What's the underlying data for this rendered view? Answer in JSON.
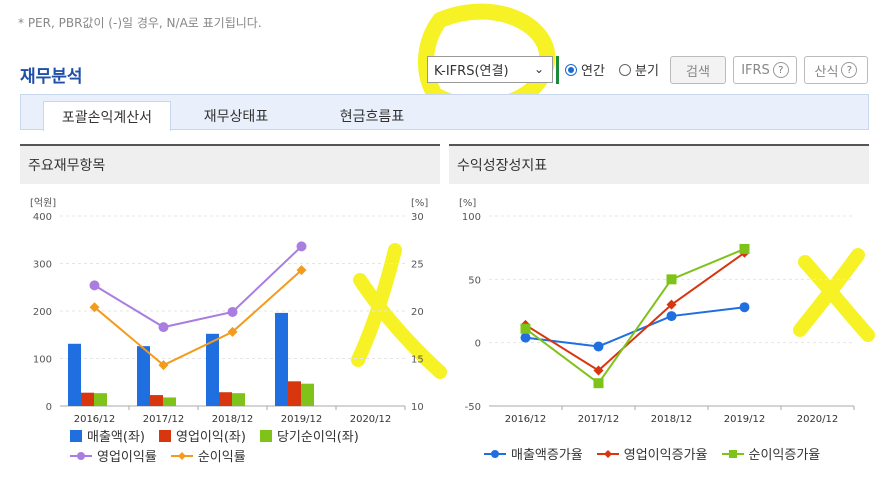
{
  "top_note": "* PER, PBR값이 (-)일 경우, N/A로 표기됩니다.",
  "section_title": "재무분석",
  "controls": {
    "select_value": "K-IFRS(연결)",
    "radio_annual": "연간",
    "radio_quarter": "분기",
    "search_button": "검색",
    "ifrs_button": "IFRS",
    "formula_button": "산식",
    "help_glyph": "?"
  },
  "tabs": [
    "포괄손익계산서",
    "재무상태표",
    "현금흐름표"
  ],
  "left_panel_title": "주요재무항목",
  "right_panel_title": "수익성장성지표",
  "colors": {
    "sales": "#1f6fe0",
    "op": "#d8360f",
    "net": "#7fc31a",
    "op_margin": "#a97ee0",
    "net_margin": "#f39b1c",
    "annot": "#fff200"
  },
  "chart_data": [
    {
      "type": "bar",
      "title": "주요재무항목",
      "left_unit": "[억원]",
      "right_unit": "[%]",
      "categories": [
        "2016/12",
        "2017/12",
        "2018/12",
        "2019/12",
        "2020/12"
      ],
      "y_ticks": [
        "400",
        "300",
        "200",
        "100",
        "0"
      ],
      "y2_ticks": [
        "30",
        "25",
        "20",
        "15",
        "10"
      ],
      "ylim": [
        0,
        400
      ],
      "y2lim": [
        10,
        30
      ],
      "series": [
        {
          "name": "매출액(좌)",
          "axis": "left",
          "kind": "bar",
          "values": [
            131,
            126,
            152,
            196,
            null
          ]
        },
        {
          "name": "영업이익(좌)",
          "axis": "left",
          "kind": "bar",
          "values": [
            28,
            23,
            29,
            52,
            null
          ]
        },
        {
          "name": "당기순이익(좌)",
          "axis": "left",
          "kind": "bar",
          "values": [
            27,
            18,
            27,
            47,
            null
          ]
        },
        {
          "name": "영업이익률",
          "axis": "right",
          "kind": "line",
          "values": [
            22.7,
            18.3,
            19.9,
            26.8,
            null
          ]
        },
        {
          "name": "순이익률",
          "axis": "right",
          "kind": "line",
          "values": [
            20.4,
            14.3,
            17.8,
            24.3,
            null
          ]
        }
      ]
    },
    {
      "type": "line",
      "title": "수익성장성지표",
      "unit": "[%]",
      "categories": [
        "2016/12",
        "2017/12",
        "2018/12",
        "2019/12",
        "2020/12"
      ],
      "y_ticks": [
        "100",
        "50",
        "0",
        "-50"
      ],
      "ylim": [
        -50,
        100
      ],
      "series": [
        {
          "name": "매출액증가율",
          "values": [
            4,
            -3,
            21,
            28,
            null
          ]
        },
        {
          "name": "영업이익증가율",
          "values": [
            14,
            -22,
            30,
            71,
            null
          ]
        },
        {
          "name": "순이익증가율",
          "values": [
            11,
            -32,
            50,
            74,
            null
          ]
        }
      ]
    }
  ],
  "left_legend": [
    "매출액(좌)",
    "영업이익(좌)",
    "당기순이익(좌)",
    "영업이익률",
    "순이익률"
  ],
  "right_legend": [
    "매출액증가율",
    "영업이익증가율",
    "순이익증가율"
  ]
}
